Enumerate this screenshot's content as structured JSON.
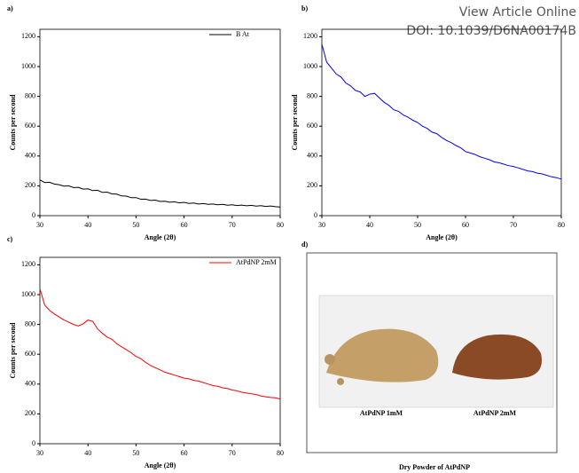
{
  "header": {
    "line1": "View Article Online",
    "line2": "DOI: 10.1039/D6NA00174B"
  },
  "chart_data": [
    {
      "type": "line",
      "label": "a)",
      "xlabel": "Angle (2θ)",
      "ylabel": "Counts per second",
      "xlim": [
        30,
        80
      ],
      "ylim": [
        0,
        1250
      ],
      "xticks": [
        30,
        40,
        50,
        60,
        70,
        80
      ],
      "yticks": [
        0,
        200,
        400,
        600,
        800,
        1000,
        1200
      ],
      "legend": "upper right",
      "x": [
        30,
        31,
        32,
        33,
        34,
        35,
        36,
        37,
        38,
        39,
        40,
        41,
        42,
        43,
        44,
        45,
        46,
        47,
        48,
        49,
        50,
        51,
        52,
        53,
        54,
        55,
        56,
        57,
        58,
        59,
        60,
        61,
        62,
        63,
        64,
        65,
        66,
        67,
        68,
        69,
        70,
        71,
        72,
        73,
        74,
        75,
        76,
        77,
        78,
        79,
        80
      ],
      "series": [
        {
          "name": "B At",
          "color": "#000000",
          "values": [
            240,
            222,
            224,
            212,
            208,
            198,
            200,
            188,
            190,
            178,
            180,
            168,
            170,
            156,
            158,
            146,
            144,
            132,
            131,
            120,
            121,
            110,
            111,
            102,
            104,
            95,
            97,
            90,
            93,
            86,
            89,
            82,
            85,
            78,
            81,
            76,
            78,
            73,
            76,
            70,
            73,
            68,
            71,
            66,
            69,
            64,
            67,
            62,
            65,
            60,
            58
          ]
        }
      ]
    },
    {
      "type": "line",
      "label": "b)",
      "xlabel": "Angle (2θ)",
      "ylabel": "Counts per second",
      "xlim": [
        30,
        80
      ],
      "ylim": [
        0,
        1250
      ],
      "xticks": [
        30,
        40,
        50,
        60,
        70,
        80
      ],
      "yticks": [
        0,
        200,
        400,
        600,
        800,
        1000,
        1200
      ],
      "x": [
        30,
        31,
        32,
        33,
        34,
        35,
        36,
        37,
        38,
        39,
        40,
        41,
        42,
        43,
        44,
        45,
        46,
        47,
        48,
        49,
        50,
        51,
        52,
        53,
        54,
        55,
        56,
        57,
        58,
        59,
        60,
        61,
        62,
        63,
        64,
        65,
        66,
        67,
        68,
        69,
        70,
        71,
        72,
        73,
        74,
        75,
        76,
        77,
        78,
        79,
        80
      ],
      "series": [
        {
          "color": "#0000ff",
          "values": [
            1150,
            1030,
            990,
            950,
            930,
            890,
            870,
            840,
            830,
            800,
            815,
            820,
            790,
            760,
            740,
            710,
            700,
            675,
            660,
            640,
            625,
            600,
            585,
            560,
            550,
            525,
            505,
            490,
            470,
            455,
            430,
            420,
            410,
            395,
            385,
            375,
            360,
            355,
            345,
            335,
            330,
            320,
            310,
            300,
            295,
            285,
            280,
            270,
            260,
            255,
            245
          ]
        }
      ]
    },
    {
      "type": "line",
      "label": "c)",
      "xlabel": "Angle (2θ)",
      "ylabel": "Counts per second",
      "xlim": [
        30,
        80
      ],
      "ylim": [
        0,
        1250
      ],
      "xticks": [
        30,
        40,
        50,
        60,
        70,
        80
      ],
      "yticks": [
        0,
        200,
        400,
        600,
        800,
        1000,
        1200
      ],
      "legend": "upper right",
      "x": [
        30,
        31,
        32,
        33,
        34,
        35,
        36,
        37,
        38,
        39,
        40,
        41,
        42,
        43,
        44,
        45,
        46,
        47,
        48,
        49,
        50,
        51,
        52,
        53,
        54,
        55,
        56,
        57,
        58,
        59,
        60,
        61,
        62,
        63,
        64,
        65,
        66,
        67,
        68,
        69,
        70,
        71,
        72,
        73,
        74,
        75,
        76,
        77,
        78,
        79,
        80
      ],
      "series": [
        {
          "name": "AtPdNP 2mM",
          "color": "#ff0000",
          "values": [
            1040,
            930,
            895,
            870,
            850,
            830,
            815,
            800,
            790,
            805,
            830,
            820,
            770,
            740,
            715,
            700,
            670,
            650,
            630,
            610,
            585,
            570,
            545,
            525,
            510,
            495,
            480,
            470,
            460,
            450,
            440,
            435,
            425,
            420,
            410,
            400,
            390,
            385,
            375,
            370,
            360,
            355,
            345,
            340,
            335,
            330,
            320,
            315,
            310,
            308,
            300
          ]
        }
      ]
    }
  ],
  "photo_panel": {
    "label": "d)",
    "samples": [
      "AtPdNP 1mM",
      "AtPdNP 2mM"
    ],
    "caption": "Dry Powder of AtPdNP"
  }
}
